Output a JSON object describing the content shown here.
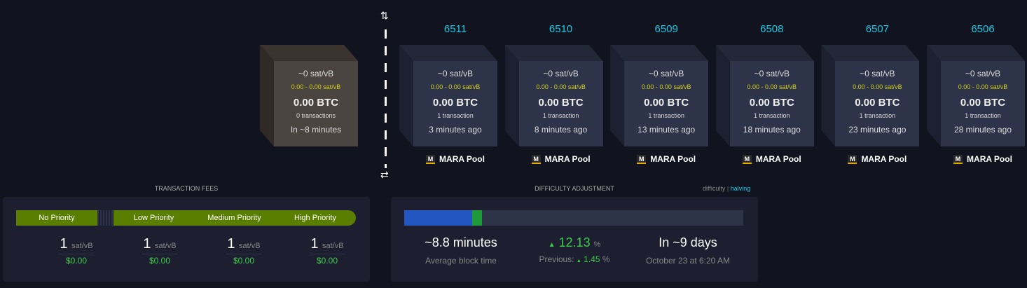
{
  "pending_block": {
    "median_fee": "~0 sat/vB",
    "fee_range": "0.00 - 0.00 sat/vB",
    "total": "0.00 BTC",
    "tx_count": "0 transactions",
    "eta": "In ~8 minutes"
  },
  "blocks": [
    {
      "height": "6511",
      "median_fee": "~0 sat/vB",
      "fee_range": "0.00 - 0.00 sat/vB",
      "total": "0.00 BTC",
      "tx_count": "1 transaction",
      "time": "3 minutes ago",
      "pool": "MARA Pool"
    },
    {
      "height": "6510",
      "median_fee": "~0 sat/vB",
      "fee_range": "0.00 - 0.00 sat/vB",
      "total": "0.00 BTC",
      "tx_count": "1 transaction",
      "time": "8 minutes ago",
      "pool": "MARA Pool"
    },
    {
      "height": "6509",
      "median_fee": "~0 sat/vB",
      "fee_range": "0.00 - 0.00 sat/vB",
      "total": "0.00 BTC",
      "tx_count": "1 transaction",
      "time": "13 minutes ago",
      "pool": "MARA Pool"
    },
    {
      "height": "6508",
      "median_fee": "~0 sat/vB",
      "fee_range": "0.00 - 0.00 sat/vB",
      "total": "0.00 BTC",
      "tx_count": "1 transaction",
      "time": "18 minutes ago",
      "pool": "MARA Pool"
    },
    {
      "height": "6507",
      "median_fee": "~0 sat/vB",
      "fee_range": "0.00 - 0.00 sat/vB",
      "total": "0.00 BTC",
      "tx_count": "1 transaction",
      "time": "23 minutes ago",
      "pool": "MARA Pool"
    },
    {
      "height": "6506",
      "median_fee": "~0 sat/vB",
      "fee_range": "0.00 - 0.00 sat/vB",
      "total": "0.00 BTC",
      "tx_count": "1 transaction",
      "time": "28 minutes ago",
      "pool": "MARA Pool"
    }
  ],
  "pool_logo_letter": "M",
  "icons": {
    "top": "sort-arrows-icon",
    "bottom": "swap-arrows-icon"
  },
  "fees": {
    "title": "TRANSACTION FEES",
    "priorities": [
      {
        "label": "No Priority",
        "value": "1",
        "unit": "sat/vB",
        "usd": "$0.00"
      },
      {
        "label": "Low Priority",
        "value": "1",
        "unit": "sat/vB",
        "usd": "$0.00"
      },
      {
        "label": "Medium Priority",
        "value": "1",
        "unit": "sat/vB",
        "usd": "$0.00"
      },
      {
        "label": "High Priority",
        "value": "1",
        "unit": "sat/vB",
        "usd": "$0.00"
      }
    ]
  },
  "difficulty": {
    "title": "DIFFICULTY ADJUSTMENT",
    "toggle": {
      "difficulty": "difficulty",
      "separator": "|",
      "halving": "halving"
    },
    "progress_blue_percent": 20,
    "progress_green_percent": 3,
    "avg_block_time": "~8.8 minutes",
    "avg_block_time_label": "Average block time",
    "change": "12.13",
    "change_unit": "%",
    "previous_label": "Previous:",
    "previous": "1.45",
    "previous_unit": "%",
    "eta": "In ~9 days",
    "eta_date": "October 23 at 6:20 AM",
    "colors": {
      "blue": "#2356c0",
      "green": "#1e9a3a",
      "up": "#3bcc49"
    }
  }
}
